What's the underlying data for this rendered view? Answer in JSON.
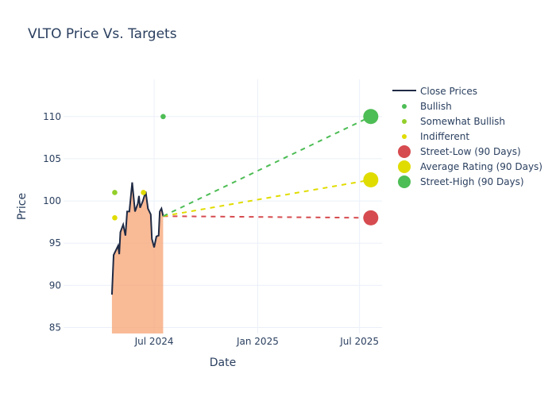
{
  "chart_data": {
    "type": "line",
    "title": "VLTO Price Vs. Targets",
    "xlabel": "Date",
    "ylabel": "Price",
    "ylim": [
      84.3,
      114.4
    ],
    "xlim": [
      "2024-01-22",
      "2025-08-10"
    ],
    "yticks": [
      85,
      90,
      95,
      100,
      105,
      110
    ],
    "xticks": [
      {
        "date": "2024-07-01",
        "label": "Jul 2024"
      },
      {
        "date": "2025-01-01",
        "label": "Jan 2025"
      },
      {
        "date": "2025-07-01",
        "label": "Jul 2025"
      }
    ],
    "grid": true,
    "legend_placement": "right",
    "close_prices": {
      "name": "Close Prices",
      "color": "#1f2a44",
      "fill_color": "#f7a373",
      "x": [
        "2024-04-17",
        "2024-04-20",
        "2024-04-28",
        "2024-04-30",
        "2024-05-02",
        "2024-05-07",
        "2024-05-11",
        "2024-05-14",
        "2024-05-18",
        "2024-05-23",
        "2024-05-28",
        "2024-06-02",
        "2024-06-04",
        "2024-06-06",
        "2024-06-11",
        "2024-06-16",
        "2024-06-20",
        "2024-06-25",
        "2024-06-27",
        "2024-07-01",
        "2024-07-05",
        "2024-07-09",
        "2024-07-11",
        "2024-07-14",
        "2024-07-17"
      ],
      "y": [
        88.9,
        93.6,
        94.7,
        93.7,
        96.3,
        97.2,
        95.9,
        98.75,
        98.75,
        102.2,
        98.75,
        99.7,
        100.6,
        99.2,
        100.0,
        101.1,
        99.1,
        98.4,
        95.5,
        94.5,
        95.8,
        95.9,
        98.75,
        99.1,
        98.2
      ]
    },
    "ratings": [
      {
        "name": "Bullish",
        "color": "#4dbd55",
        "points": [
          {
            "x": "2024-07-17",
            "y": 110
          }
        ]
      },
      {
        "name": "Somewhat Bullish",
        "color": "#93cf2a",
        "points": [
          {
            "x": "2024-04-22",
            "y": 101
          }
        ]
      },
      {
        "name": "Indifferent",
        "color": "#e0dc00",
        "points": [
          {
            "x": "2024-04-22",
            "y": 98
          },
          {
            "x": "2024-06-12",
            "y": 101
          }
        ]
      }
    ],
    "targets": [
      {
        "name": "Street-Low (90 Days)",
        "color": "#d64b4f",
        "from": {
          "x": "2024-07-17",
          "y": 98.2
        },
        "to": {
          "x": "2025-07-21",
          "y": 98
        }
      },
      {
        "name": "Average Rating (90 Days)",
        "color": "#e0dc00",
        "from": {
          "x": "2024-07-17",
          "y": 98.2
        },
        "to": {
          "x": "2025-07-21",
          "y": 102.5
        }
      },
      {
        "name": "Street-High (90 Days)",
        "color": "#4dbd55",
        "from": {
          "x": "2024-07-17",
          "y": 98.2
        },
        "to": {
          "x": "2025-07-21",
          "y": 110
        }
      }
    ]
  }
}
